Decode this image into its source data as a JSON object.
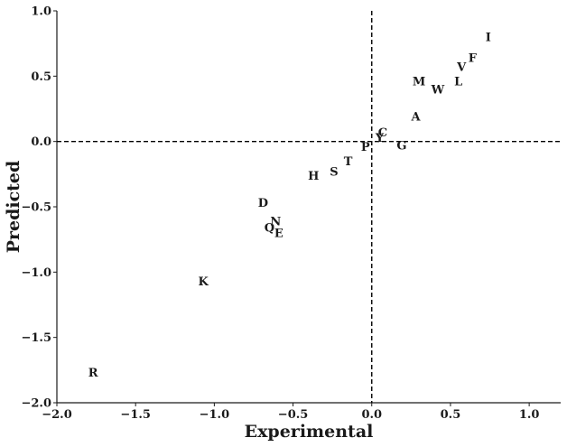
{
  "chart_data": {
    "type": "scatter",
    "title": "",
    "xlabel": "Experimental",
    "ylabel": "Predicted",
    "xlim": [
      -2.0,
      1.2
    ],
    "ylim": [
      -2.0,
      1.0
    ],
    "x_ticks": [
      {
        "value": -2.0,
        "label": "−2.0"
      },
      {
        "value": -1.5,
        "label": "−1.5"
      },
      {
        "value": -1.0,
        "label": "−1.0"
      },
      {
        "value": -0.5,
        "label": "−0.5"
      },
      {
        "value": 0.0,
        "label": "0.0"
      },
      {
        "value": 0.5,
        "label": "0.5"
      },
      {
        "value": 1.0,
        "label": "1.0"
      }
    ],
    "y_ticks": [
      {
        "value": 1.0,
        "label": "1.0"
      },
      {
        "value": 0.5,
        "label": "0.5"
      },
      {
        "value": 0.0,
        "label": "0.0"
      },
      {
        "value": -0.5,
        "label": "−0.5"
      },
      {
        "value": -1.0,
        "label": "−1.0"
      },
      {
        "value": -1.5,
        "label": "−1.5"
      },
      {
        "value": -2.0,
        "label": "−2.0"
      }
    ],
    "grid": false,
    "reference_lines": {
      "x": 0.0,
      "y": 0.0,
      "style": "dashed"
    },
    "points": [
      {
        "label": "I",
        "x": 0.74,
        "y": 0.8
      },
      {
        "label": "F",
        "x": 0.64,
        "y": 0.64
      },
      {
        "label": "V",
        "x": 0.57,
        "y": 0.57
      },
      {
        "label": "L",
        "x": 0.55,
        "y": 0.46
      },
      {
        "label": "M",
        "x": 0.3,
        "y": 0.46
      },
      {
        "label": "W",
        "x": 0.42,
        "y": 0.4
      },
      {
        "label": "A",
        "x": 0.28,
        "y": 0.19
      },
      {
        "label": "C",
        "x": 0.07,
        "y": 0.07
      },
      {
        "label": "Y",
        "x": 0.05,
        "y": 0.03
      },
      {
        "label": "G",
        "x": 0.19,
        "y": -0.03
      },
      {
        "label": "P",
        "x": -0.04,
        "y": -0.04
      },
      {
        "label": "T",
        "x": -0.15,
        "y": -0.15
      },
      {
        "label": "S",
        "x": -0.24,
        "y": -0.23
      },
      {
        "label": "H",
        "x": -0.37,
        "y": -0.26
      },
      {
        "label": "D",
        "x": -0.69,
        "y": -0.47
      },
      {
        "label": "N",
        "x": -0.61,
        "y": -0.61
      },
      {
        "label": "Q",
        "x": -0.65,
        "y": -0.66
      },
      {
        "label": "E",
        "x": -0.59,
        "y": -0.7
      },
      {
        "label": "K",
        "x": -1.07,
        "y": -1.07
      },
      {
        "label": "R",
        "x": -1.77,
        "y": -1.77
      }
    ]
  }
}
